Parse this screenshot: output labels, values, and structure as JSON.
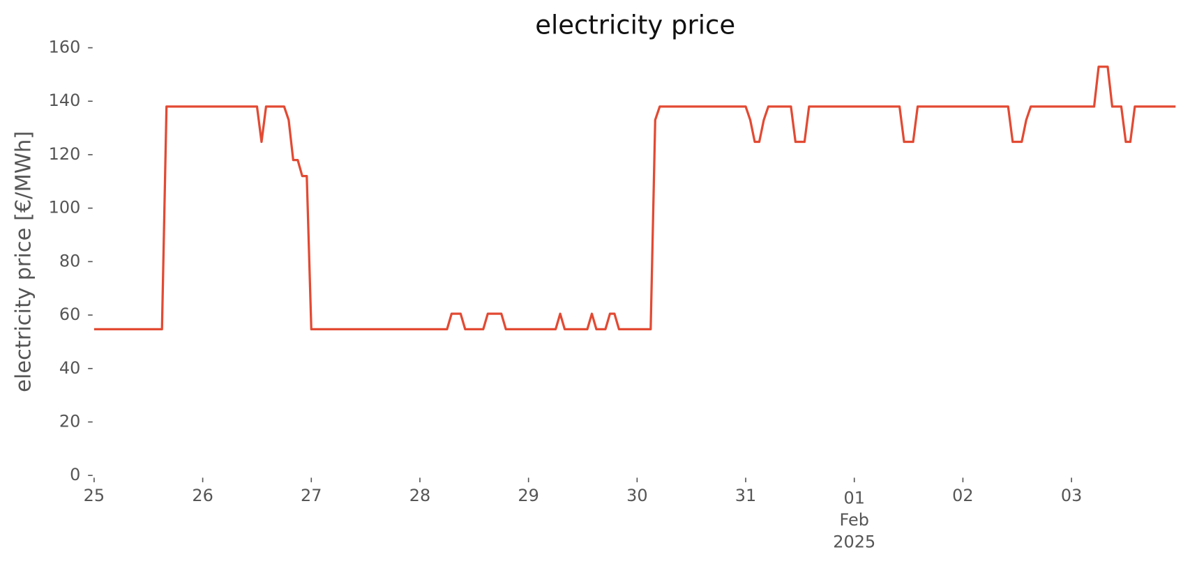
{
  "chart_data": {
    "type": "line",
    "title": "electricity price",
    "ylabel": "electricity price [€/MWh]",
    "x": [
      0,
      15,
      16,
      36,
      37,
      38,
      42,
      43,
      44,
      45,
      46,
      47,
      48,
      78,
      79,
      81,
      82,
      86,
      87,
      90,
      91,
      102,
      103,
      104,
      109,
      110,
      111,
      113,
      114,
      115,
      116,
      123,
      124,
      125,
      144,
      145,
      146,
      147,
      148,
      149,
      154,
      155,
      157,
      158,
      178,
      179,
      181,
      182,
      202,
      203,
      205,
      206,
      207,
      221,
      222,
      224,
      225,
      227,
      228,
      229,
      230,
      239
    ],
    "series": [
      {
        "name": "electricity price",
        "color": "#e24a33",
        "values": [
          54.7,
          54.7,
          138,
          138,
          124.8,
          138,
          138,
          133,
          118,
          118,
          112,
          112,
          54.7,
          54.7,
          60.5,
          60.5,
          54.7,
          54.7,
          60.5,
          60.5,
          54.7,
          54.7,
          60.5,
          54.7,
          54.7,
          60.5,
          54.7,
          54.7,
          60.5,
          60.5,
          54.7,
          54.7,
          133,
          138,
          138,
          133,
          124.8,
          124.8,
          133,
          138,
          138,
          124.8,
          124.8,
          138,
          138,
          124.8,
          124.8,
          138,
          138,
          124.8,
          124.8,
          133,
          138,
          138,
          152.9,
          152.9,
          138,
          138,
          124.8,
          124.8,
          138,
          138
        ]
      }
    ],
    "xlim": [
      0,
      239
    ],
    "xticks": [
      {
        "value": 0,
        "label": "25"
      },
      {
        "value": 24,
        "label": "26"
      },
      {
        "value": 48,
        "label": "27"
      },
      {
        "value": 72,
        "label": "28"
      },
      {
        "value": 96,
        "label": "29"
      },
      {
        "value": 120,
        "label": "30"
      },
      {
        "value": 144,
        "label": "31"
      },
      {
        "value": 168,
        "label": "01\nFeb\n2025"
      },
      {
        "value": 192,
        "label": "02"
      },
      {
        "value": 216,
        "label": "03"
      }
    ],
    "ylim": [
      0,
      160
    ],
    "yticks": [
      0,
      20,
      40,
      60,
      80,
      100,
      120,
      140,
      160
    ],
    "grid": false
  }
}
